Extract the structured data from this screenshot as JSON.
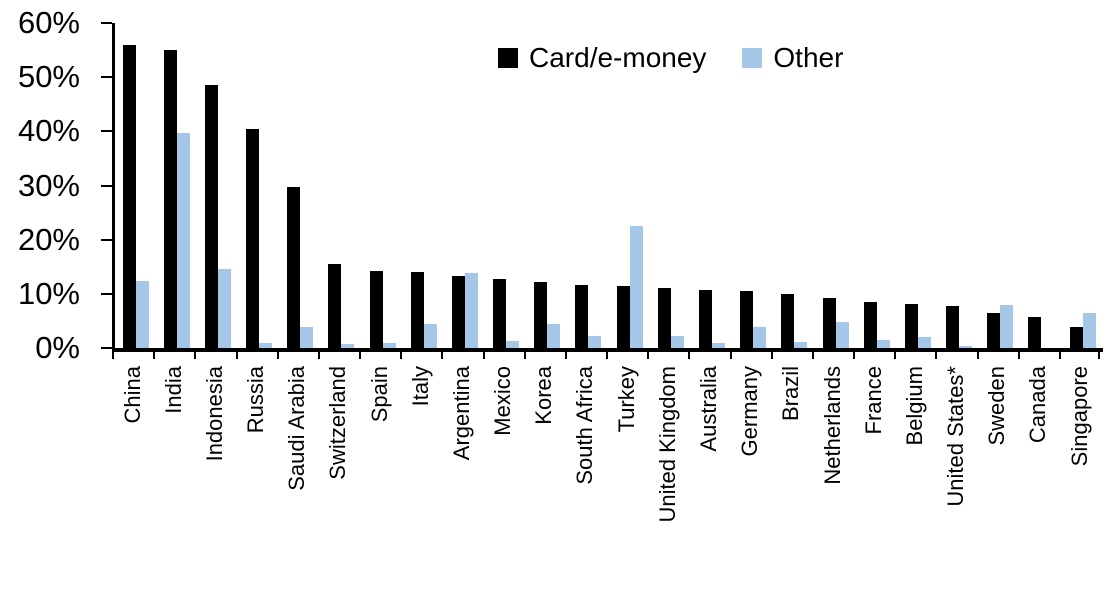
{
  "chart_data": {
    "type": "bar",
    "title": "",
    "categories": [
      "China",
      "India",
      "Indonesia",
      "Russia",
      "Saudi Arabia",
      "Switzerland",
      "Spain",
      "Italy",
      "Argentina",
      "Mexico",
      "Korea",
      "South Africa",
      "Turkey",
      "United Kingdom",
      "Australia",
      "Germany",
      "Brazil",
      "Netherlands",
      "France",
      "Belgium",
      "United States*",
      "Sweden",
      "Canada",
      "Singapore"
    ],
    "series": [
      {
        "name": "Card/e-money",
        "color": "#000000",
        "values": [
          56.0,
          55.0,
          48.5,
          40.5,
          29.8,
          15.5,
          14.2,
          14.0,
          13.3,
          12.8,
          12.2,
          11.6,
          11.5,
          11.1,
          10.8,
          10.6,
          9.9,
          9.2,
          8.5,
          8.1,
          7.8,
          6.4,
          5.8,
          3.9
        ]
      },
      {
        "name": "Other",
        "color": "#A4C7E8",
        "values": [
          12.3,
          39.7,
          14.5,
          1.0,
          3.9,
          0.8,
          1.0,
          4.5,
          13.8,
          1.3,
          4.5,
          2.3,
          22.6,
          2.3,
          1.0,
          3.9,
          1.2,
          4.8,
          1.5,
          2.0,
          0.4,
          7.9,
          0,
          6.5
        ]
      }
    ],
    "xlabel": "",
    "ylabel": "",
    "ylim": [
      0,
      60
    ],
    "y_ticks": [
      {
        "value": 0,
        "label": "0%"
      },
      {
        "value": 10,
        "label": "10%"
      },
      {
        "value": 20,
        "label": "20%"
      },
      {
        "value": 30,
        "label": "30%"
      },
      {
        "value": 40,
        "label": "40%"
      },
      {
        "value": 50,
        "label": "50%"
      },
      {
        "value": 60,
        "label": "60%"
      }
    ],
    "grid": false,
    "legend_position": "top"
  }
}
